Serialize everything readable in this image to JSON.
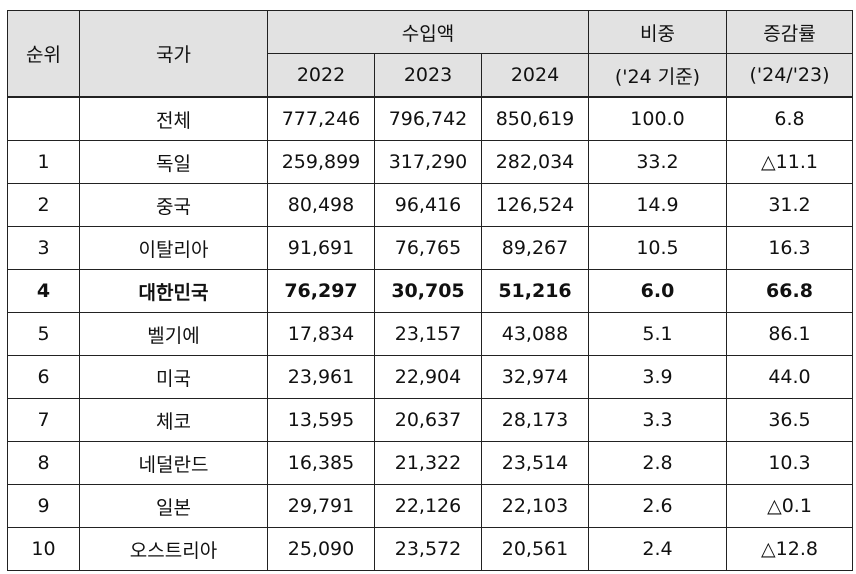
{
  "table": {
    "headers": {
      "rank": "순위",
      "country": "국가",
      "import_amount": "수입액",
      "years": [
        "2022",
        "2023",
        "2024"
      ],
      "share": "비중",
      "share_sub": "('24 기준)",
      "growth": "증감률",
      "growth_sub": "('24/'23)"
    },
    "rows": [
      {
        "rank": "",
        "country": "전체",
        "y2022": "777,246",
        "y2023": "796,742",
        "y2024": "850,619",
        "share": "100.0",
        "growth": "6.8"
      },
      {
        "rank": "1",
        "country": "독일",
        "y2022": "259,899",
        "y2023": "317,290",
        "y2024": "282,034",
        "share": "33.2",
        "growth": "△11.1"
      },
      {
        "rank": "2",
        "country": "중국",
        "y2022": "80,498",
        "y2023": "96,416",
        "y2024": "126,524",
        "share": "14.9",
        "growth": "31.2"
      },
      {
        "rank": "3",
        "country": "이탈리아",
        "y2022": "91,691",
        "y2023": "76,765",
        "y2024": "89,267",
        "share": "10.5",
        "growth": "16.3"
      },
      {
        "rank": "4",
        "country": "대한민국",
        "y2022": "76,297",
        "y2023": "30,705",
        "y2024": "51,216",
        "share": "6.0",
        "growth": "66.8"
      },
      {
        "rank": "5",
        "country": "벨기에",
        "y2022": "17,834",
        "y2023": "23,157",
        "y2024": "43,088",
        "share": "5.1",
        "growth": "86.1"
      },
      {
        "rank": "6",
        "country": "미국",
        "y2022": "23,961",
        "y2023": "22,904",
        "y2024": "32,974",
        "share": "3.9",
        "growth": "44.0"
      },
      {
        "rank": "7",
        "country": "체코",
        "y2022": "13,595",
        "y2023": "20,637",
        "y2024": "28,173",
        "share": "3.3",
        "growth": "36.5"
      },
      {
        "rank": "8",
        "country": "네덜란드",
        "y2022": "16,385",
        "y2023": "21,322",
        "y2024": "23,514",
        "share": "2.8",
        "growth": "10.3"
      },
      {
        "rank": "9",
        "country": "일본",
        "y2022": "29,791",
        "y2023": "22,126",
        "y2024": "22,103",
        "share": "2.6",
        "growth": "△0.1"
      },
      {
        "rank": "10",
        "country": "오스트리아",
        "y2022": "25,090",
        "y2023": "23,572",
        "y2024": "20,561",
        "share": "2.4",
        "growth": "△12.8"
      }
    ]
  }
}
